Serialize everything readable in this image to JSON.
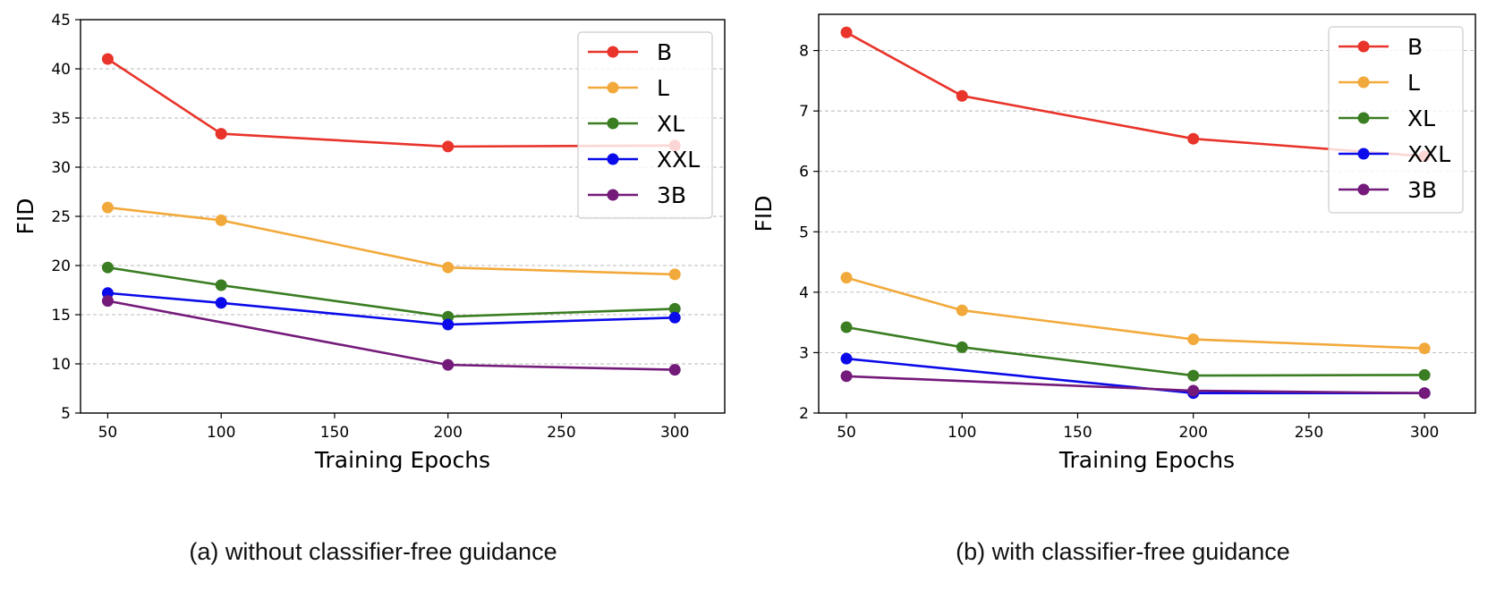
{
  "captions": {
    "a": "(a) without classifier-free guidance",
    "b": "(b) with classifier-free guidance"
  },
  "chart_data": [
    {
      "type": "line",
      "title": "",
      "xlabel": "Training Epochs",
      "ylabel": "FID",
      "xlim": [
        38,
        322
      ],
      "ylim": [
        5,
        45
      ],
      "xticks": [
        50,
        100,
        150,
        200,
        250,
        300
      ],
      "yticks": [
        5,
        10,
        15,
        20,
        25,
        30,
        35,
        40,
        45
      ],
      "grid": "horizontal-dashed",
      "legend_position": "top-right",
      "series": [
        {
          "name": "B",
          "color": "#e8342a",
          "x": [
            50,
            100,
            200,
            300
          ],
          "y": [
            41.0,
            33.4,
            32.1,
            32.2
          ]
        },
        {
          "name": "L",
          "color": "#f2a93b",
          "x": [
            50,
            100,
            200,
            300
          ],
          "y": [
            25.9,
            24.6,
            19.8,
            19.1
          ]
        },
        {
          "name": "XL",
          "color": "#3a7d22",
          "x": [
            50,
            100,
            200,
            300
          ],
          "y": [
            19.8,
            18.0,
            14.8,
            15.6
          ]
        },
        {
          "name": "XXL",
          "color": "#0a0aea",
          "x": [
            50,
            100,
            200,
            300
          ],
          "y": [
            17.2,
            16.2,
            14.0,
            14.7
          ]
        },
        {
          "name": "3B",
          "color": "#741a7a",
          "x": [
            50,
            200,
            300
          ],
          "y": [
            16.4,
            9.9,
            9.4
          ]
        }
      ]
    },
    {
      "type": "line",
      "title": "",
      "xlabel": "Training Epochs",
      "ylabel": "FID",
      "xlim": [
        38,
        322
      ],
      "ylim": [
        2,
        8.6
      ],
      "xticks": [
        50,
        100,
        150,
        200,
        250,
        300
      ],
      "yticks": [
        2,
        3,
        4,
        5,
        6,
        7,
        8
      ],
      "grid": "horizontal-dashed",
      "legend_position": "top-right",
      "series": [
        {
          "name": "B",
          "color": "#e8342a",
          "x": [
            50,
            100,
            200,
            300
          ],
          "y": [
            8.3,
            7.25,
            6.54,
            6.25
          ]
        },
        {
          "name": "L",
          "color": "#f2a93b",
          "x": [
            50,
            100,
            200,
            300
          ],
          "y": [
            4.24,
            3.7,
            3.22,
            3.07
          ]
        },
        {
          "name": "XL",
          "color": "#3a7d22",
          "x": [
            50,
            100,
            200,
            300
          ],
          "y": [
            3.42,
            3.09,
            2.62,
            2.63
          ]
        },
        {
          "name": "XXL",
          "color": "#0a0aea",
          "x": [
            50,
            200,
            300
          ],
          "y": [
            2.9,
            2.33,
            2.33
          ]
        },
        {
          "name": "3B",
          "color": "#741a7a",
          "x": [
            50,
            200,
            300
          ],
          "y": [
            2.61,
            2.37,
            2.33
          ]
        }
      ]
    }
  ]
}
